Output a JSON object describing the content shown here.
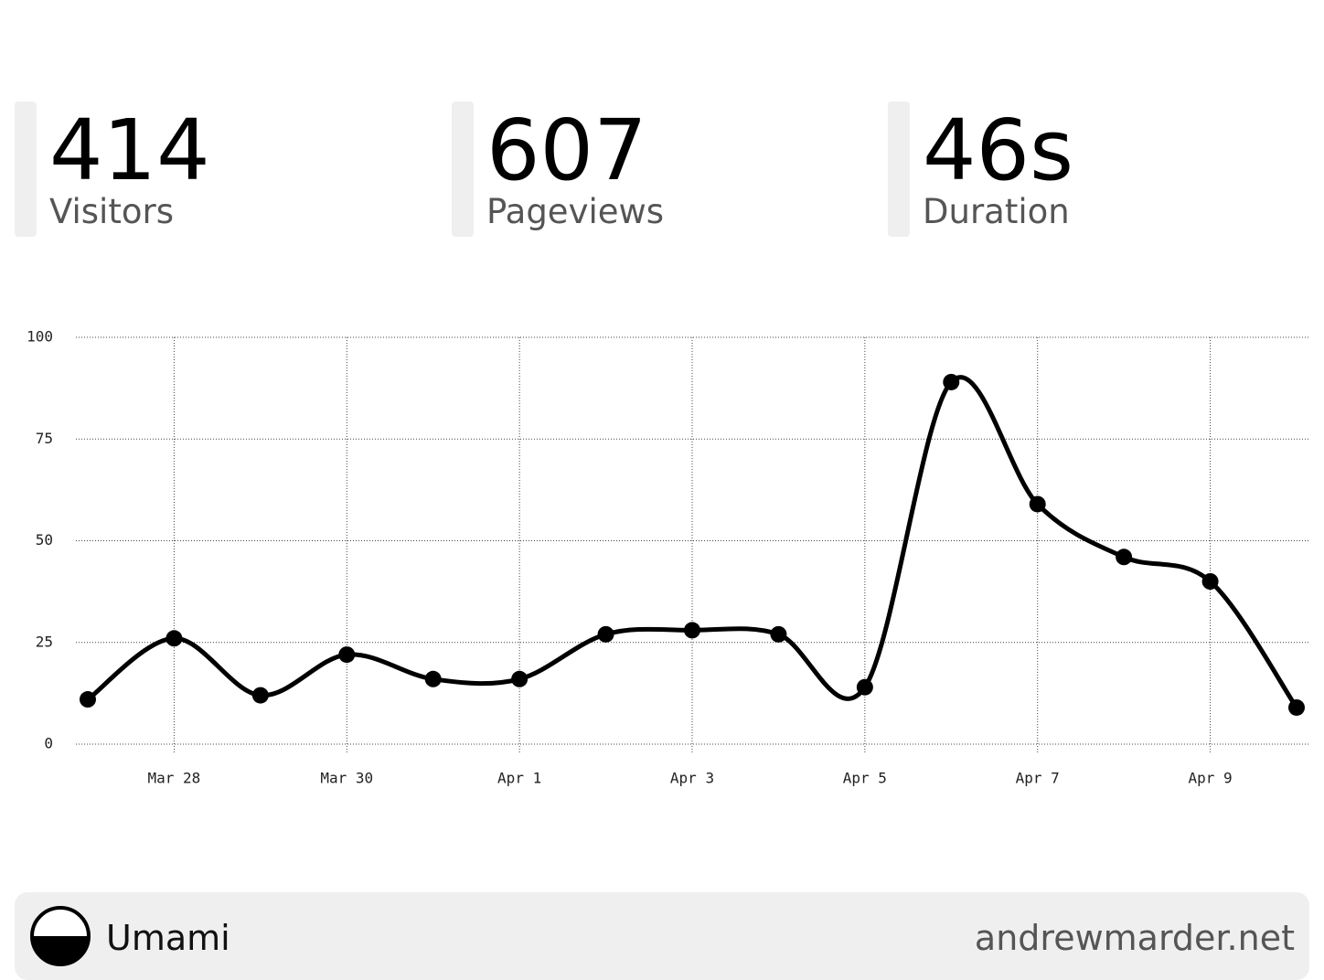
{
  "stats": [
    {
      "value": 414,
      "label": "Visitors"
    },
    {
      "value": 607,
      "label": "Pageviews"
    },
    {
      "value": "46s",
      "label": "Duration"
    }
  ],
  "chart_data": {
    "type": "line",
    "categories": [
      null,
      "Mar 28",
      null,
      "Mar 30",
      null,
      "Apr 1",
      null,
      "Apr 3",
      null,
      "Apr 5",
      null,
      "Apr 7",
      null,
      "Apr 9",
      null
    ],
    "values": [
      11,
      26,
      12,
      22,
      16,
      16,
      27,
      28,
      27,
      14,
      89,
      59,
      46,
      40,
      9
    ],
    "color": "#000000",
    "ylim": [
      0,
      100
    ],
    "yticks": [
      0,
      25,
      50,
      75,
      100
    ],
    "grid": true
  },
  "footer": {
    "brand": "Umami",
    "site": "andrewmarder.net"
  }
}
